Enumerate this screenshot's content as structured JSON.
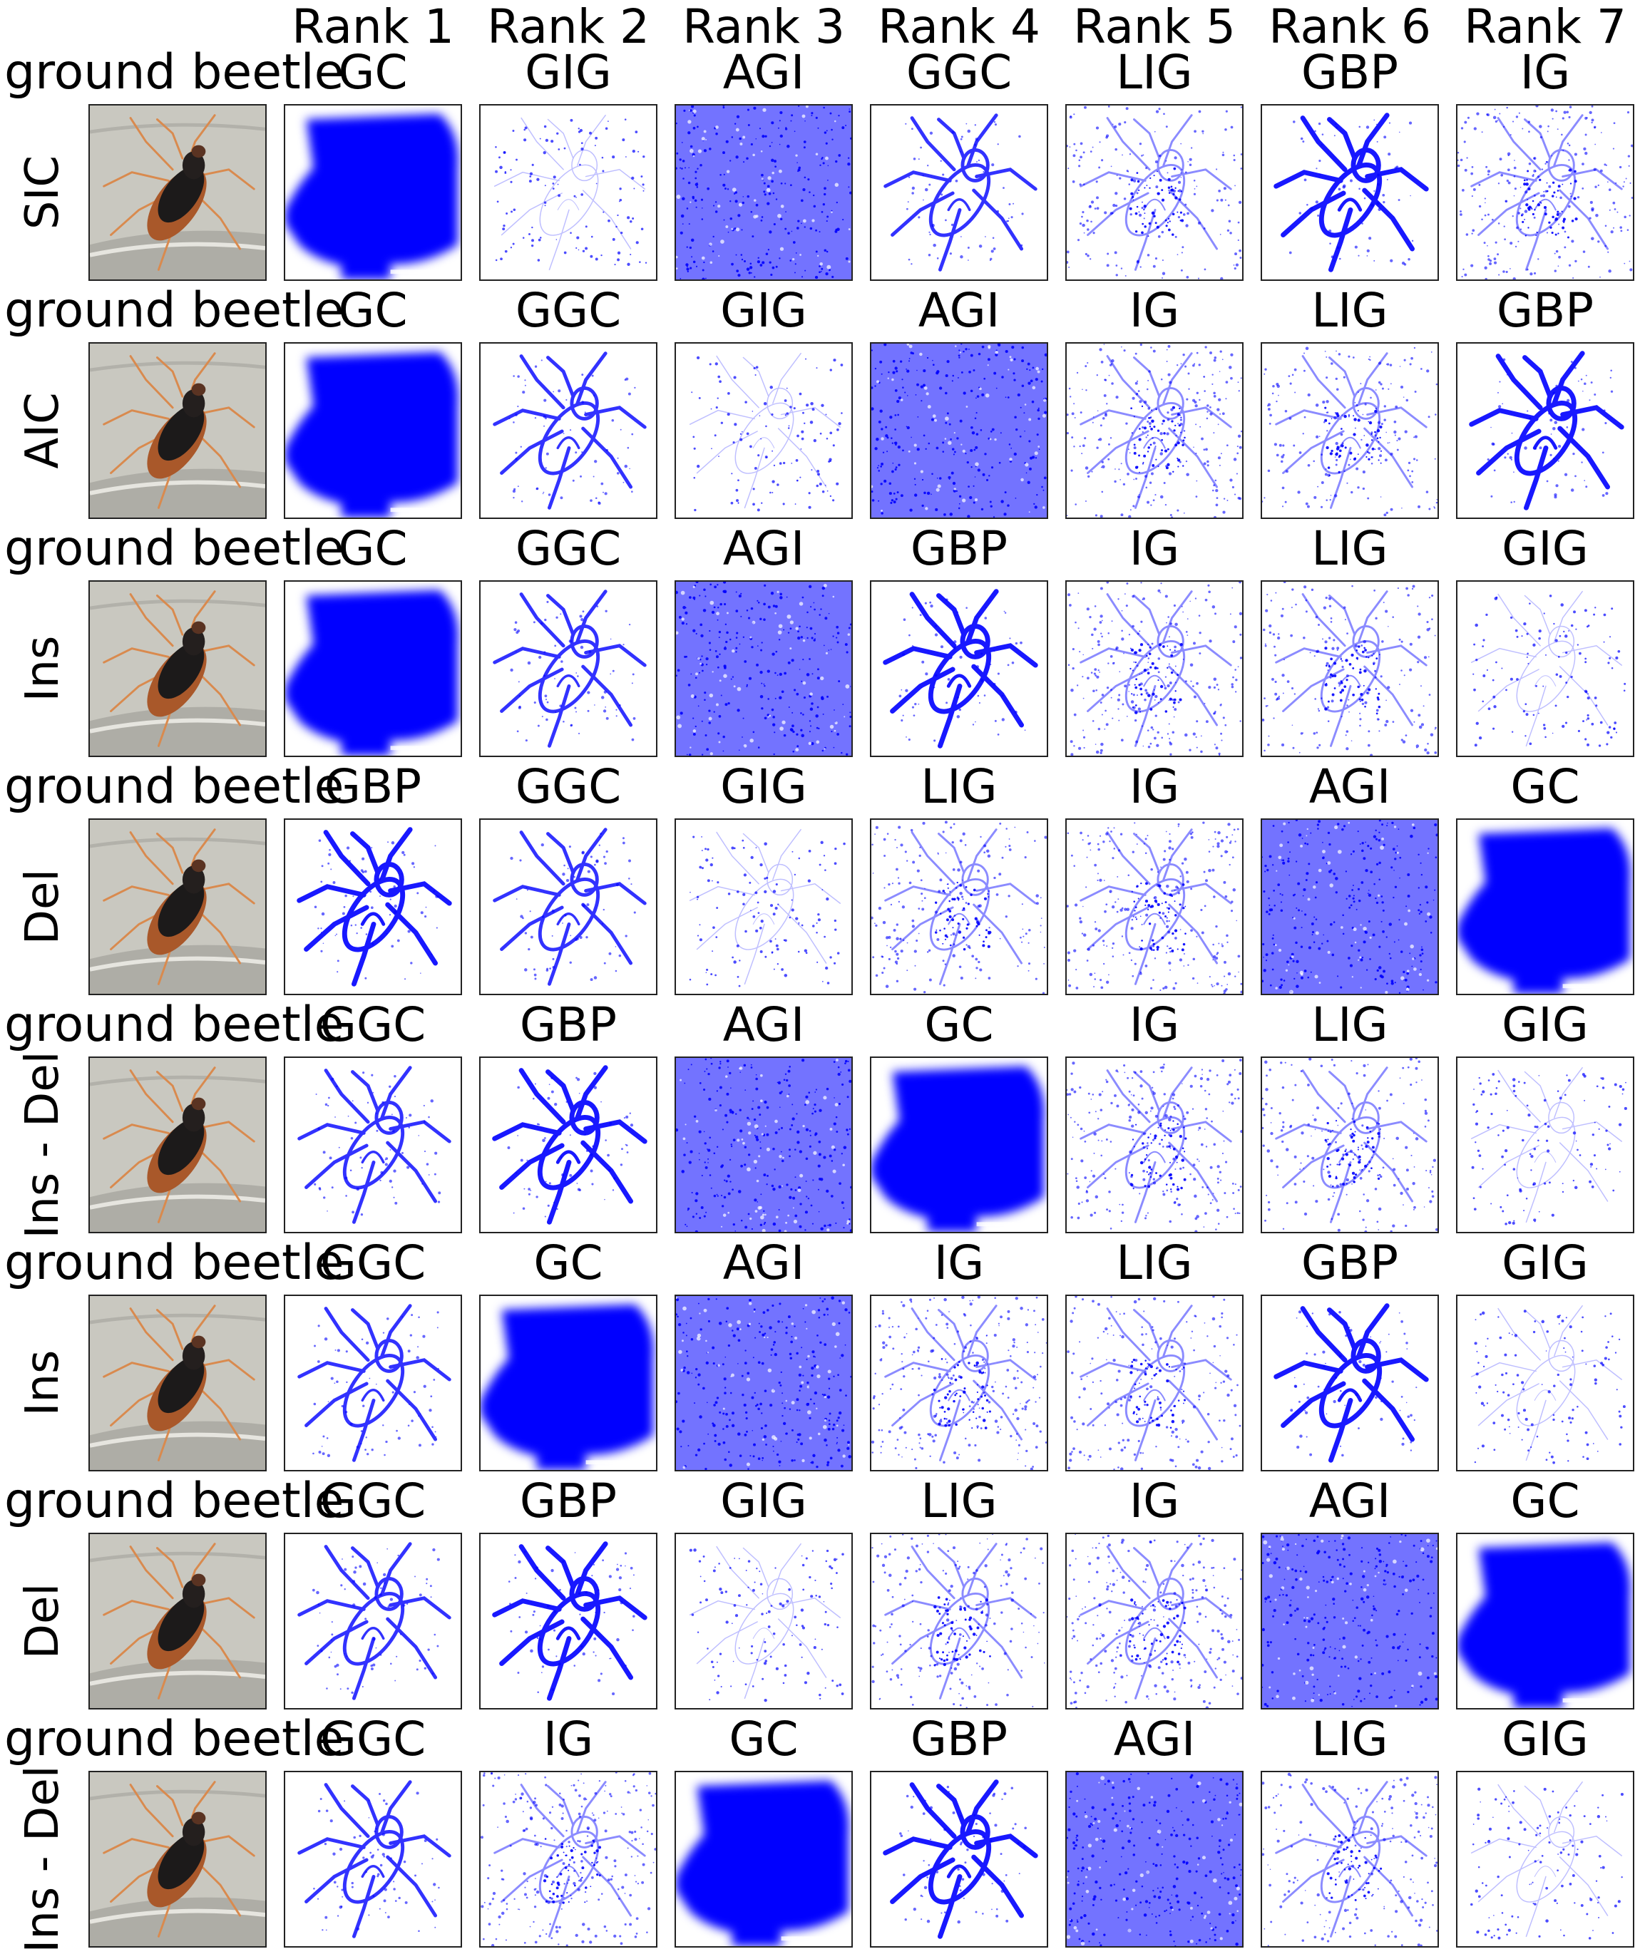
{
  "rank_headers": [
    "Rank 1",
    "Rank 2",
    "Rank 3",
    "Rank 4",
    "Rank 5",
    "Rank 6",
    "Rank 7"
  ],
  "rows": [
    {
      "class_label": "ground beetle",
      "metric": "SIC",
      "methods": [
        "GC",
        "GIG",
        "AGI",
        "GGC",
        "LIG",
        "GBP",
        "IG"
      ]
    },
    {
      "class_label": "ground beetle",
      "metric": "AIC",
      "methods": [
        "GC",
        "GGC",
        "GIG",
        "AGI",
        "IG",
        "LIG",
        "GBP"
      ]
    },
    {
      "class_label": "ground beetle",
      "metric": "Ins",
      "methods": [
        "GC",
        "GGC",
        "AGI",
        "GBP",
        "IG",
        "LIG",
        "GIG"
      ]
    },
    {
      "class_label": "ground beetle",
      "metric": "Del",
      "methods": [
        "GBP",
        "GGC",
        "GIG",
        "LIG",
        "IG",
        "AGI",
        "GC"
      ]
    },
    {
      "class_label": "ground beetle",
      "metric": "Ins - Del",
      "methods": [
        "GGC",
        "GBP",
        "AGI",
        "GC",
        "IG",
        "LIG",
        "GIG"
      ]
    },
    {
      "class_label": "ground beetle",
      "metric": "Ins",
      "methods": [
        "GGC",
        "GC",
        "AGI",
        "IG",
        "LIG",
        "GBP",
        "GIG"
      ]
    },
    {
      "class_label": "ground beetle",
      "metric": "Del",
      "methods": [
        "GGC",
        "GBP",
        "GIG",
        "LIG",
        "IG",
        "AGI",
        "GC"
      ]
    },
    {
      "class_label": "ground beetle",
      "metric": "Ins - Del",
      "methods": [
        "GGC",
        "IG",
        "GC",
        "GBP",
        "AGI",
        "LIG",
        "GIG"
      ]
    }
  ],
  "colors": {
    "saliency": "#0000ff",
    "frame": "#222222",
    "background": "#ffffff"
  }
}
